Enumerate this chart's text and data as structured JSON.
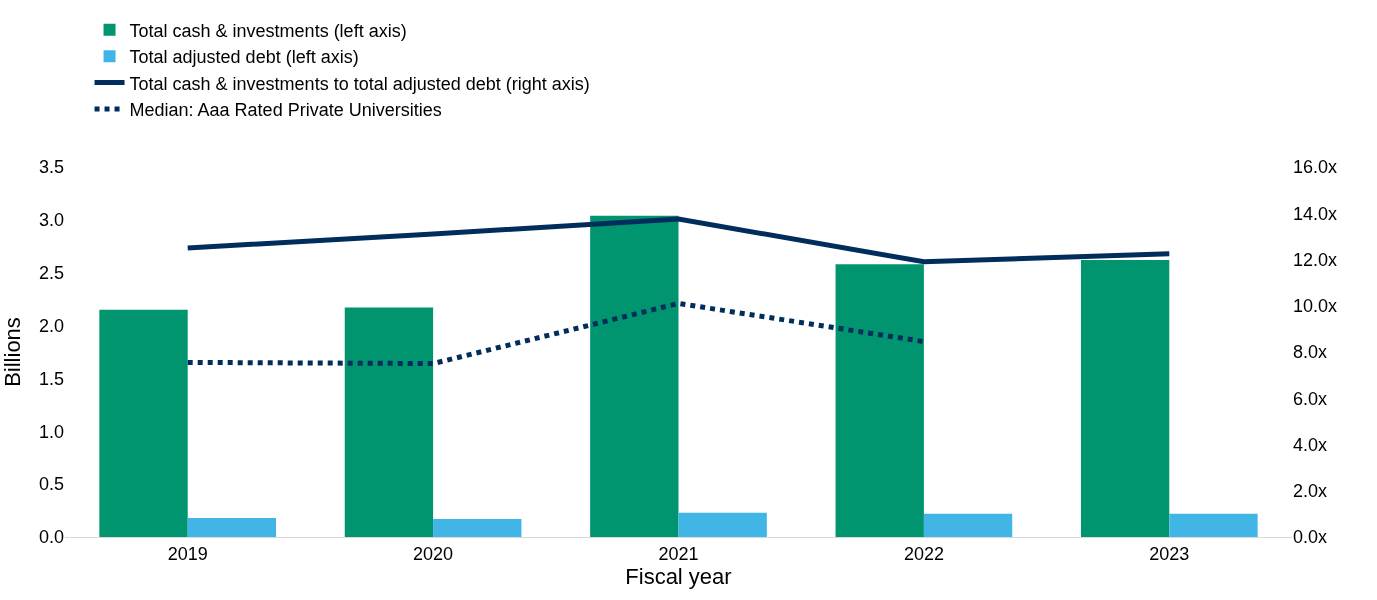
{
  "chart_data": {
    "type": "bar",
    "xlabel": "Fiscal year",
    "ylabel": "Billions",
    "categories": [
      "2019",
      "2020",
      "2021",
      "2022",
      "2023"
    ],
    "series": [
      {
        "name": "Total cash & investments (left axis)",
        "color": "#00956f",
        "values": [
          2.15,
          2.17,
          3.04,
          2.58,
          2.62
        ]
      },
      {
        "name": "Total adjusted debt (left axis)",
        "color": "#41b6e6",
        "values": [
          0.18,
          0.17,
          0.23,
          0.22,
          0.22
        ]
      },
      {
        "name": "Total cash & investments to total adjusted debt (right axis)",
        "type": "line",
        "axis": "y2",
        "color": "#002d5b",
        "line_style": "solid",
        "values": [
          12.5,
          13.1,
          13.75,
          11.9,
          12.25
        ]
      },
      {
        "name": "Median: Aaa Rated Private Universities",
        "type": "line",
        "axis": "y2",
        "color": "#002d5b",
        "line_style": "dotted",
        "values": [
          7.55,
          7.5,
          10.1,
          8.45,
          null
        ]
      }
    ],
    "ylim": [
      0,
      3.5
    ],
    "yticks": [
      {
        "value": 0,
        "label": "0.0"
      },
      {
        "value": 0.5,
        "label": "0.5"
      },
      {
        "value": 1,
        "label": "1.0"
      },
      {
        "value": 1.5,
        "label": "1.5"
      },
      {
        "value": 2,
        "label": "2.0"
      },
      {
        "value": 2.5,
        "label": "2.5"
      },
      {
        "value": 3,
        "label": "3.0"
      },
      {
        "value": 3.5,
        "label": "3.5"
      }
    ],
    "y2lim": [
      0,
      16
    ],
    "y2ticks": [
      {
        "value": 0,
        "label": "0.0x"
      },
      {
        "value": 2,
        "label": "2.0x"
      },
      {
        "value": 4,
        "label": "4.0x"
      },
      {
        "value": 6,
        "label": "6.0x"
      },
      {
        "value": 8,
        "label": "8.0x"
      },
      {
        "value": 10,
        "label": "10.0x"
      },
      {
        "value": 12,
        "label": "12.0x"
      },
      {
        "value": 14,
        "label": "14.0x"
      },
      {
        "value": 16,
        "label": "16.0x"
      }
    ],
    "grid": false,
    "legend": "top left",
    "marker": "none"
  }
}
